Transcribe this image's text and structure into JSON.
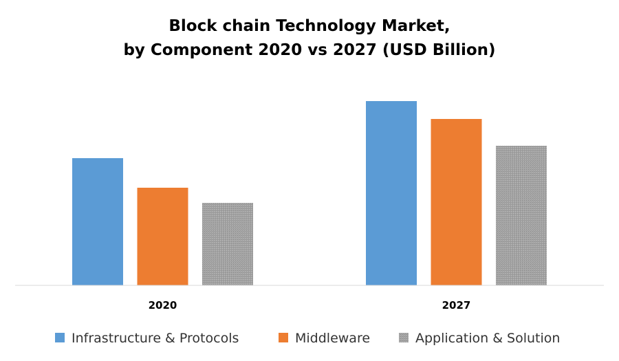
{
  "chart_data": {
    "type": "bar",
    "title_lines": [
      "Block chain Technology Market,",
      "by Component 2020 vs 2027 (USD Billion)"
    ],
    "categories": [
      "2020",
      "2027"
    ],
    "series": [
      {
        "name": "Infrastructure & Protocols",
        "values": [
          185,
          268
        ],
        "color": "#5b9bd5",
        "pattern": "solid"
      },
      {
        "name": "Middleware",
        "values": [
          142,
          242
        ],
        "color": "#ed7d31",
        "pattern": "solid"
      },
      {
        "name": "Application & Solution",
        "values": [
          120,
          203
        ],
        "color": "#a5a5a5",
        "pattern": "stipple"
      }
    ],
    "ylim": [
      0,
      300
    ],
    "grid": false,
    "legend_position": "bottom"
  }
}
